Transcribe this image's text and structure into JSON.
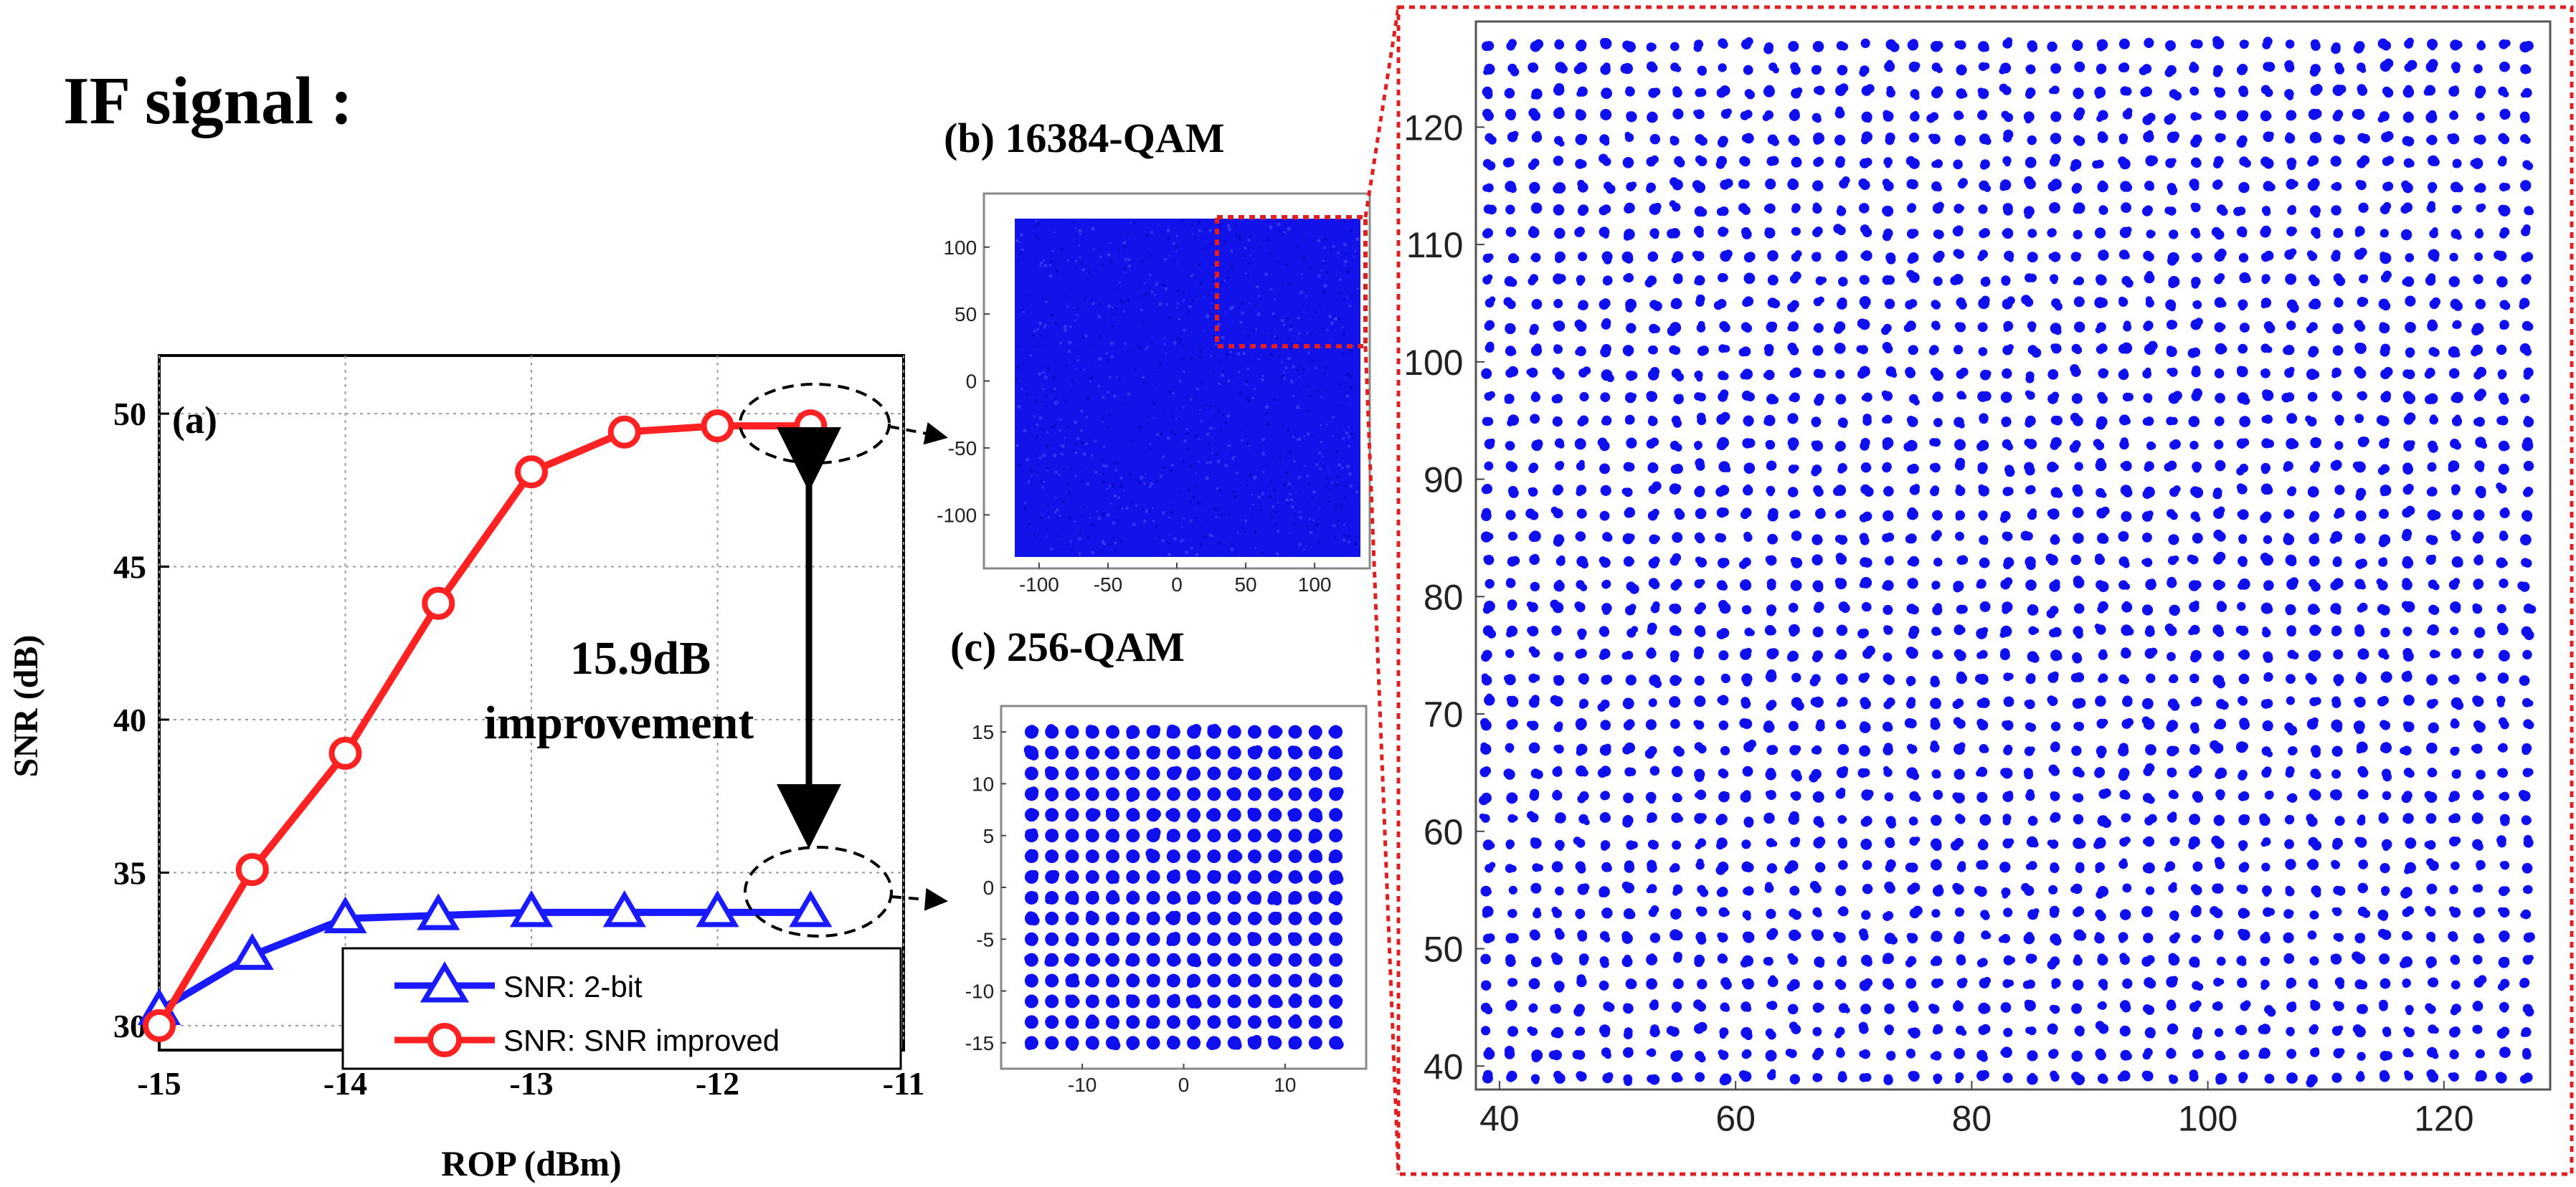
{
  "heading": "IF signal :",
  "colors": {
    "blue_series": "#1a1aff",
    "red_series": "#ff2222",
    "constellation_blue": "#1010ee",
    "zoom_box": "#e02020",
    "grid": "#9a9a9a"
  },
  "chart_data": [
    {
      "id": "a",
      "type": "line",
      "panel_label": "(a)",
      "xlabel": "ROP (dBm)",
      "ylabel": "SNR (dB)",
      "xlim": [
        -15,
        -11
      ],
      "ylim": [
        29.2,
        51.9
      ],
      "xticks": [
        -15,
        -14,
        -13,
        -12,
        -11
      ],
      "yticks": [
        30,
        35,
        40,
        45,
        50
      ],
      "grid": true,
      "legend_position": "bottom-right",
      "series": [
        {
          "name": "SNR: 2-bit",
          "marker": "triangle",
          "color": "#1a1aff",
          "x": [
            -15,
            -14.5,
            -14,
            -13.5,
            -13,
            -12.5,
            -12,
            -11.5
          ],
          "y": [
            30.5,
            32.3,
            33.5,
            33.6,
            33.7,
            33.7,
            33.7,
            33.7
          ]
        },
        {
          "name": "SNR: SNR improved",
          "marker": "circle",
          "color": "#ff2222",
          "x": [
            -15,
            -14.5,
            -14,
            -13.5,
            -13,
            -12.5,
            -12,
            -11.5
          ],
          "y": [
            30.0,
            35.1,
            38.9,
            43.8,
            48.1,
            49.4,
            49.6,
            49.6
          ]
        }
      ],
      "annotations": [
        "15.9dB",
        "improvement"
      ]
    },
    {
      "id": "b",
      "type": "scatter",
      "title": "(b) 16384-QAM",
      "grid_size": 128,
      "xlim": [
        -140,
        140
      ],
      "ylim": [
        -140,
        140
      ],
      "xticks": [
        -100,
        -50,
        0,
        50,
        100
      ],
      "yticks": [
        100,
        50,
        0,
        -50,
        -100
      ],
      "zoom_region": {
        "x": [
          30,
          127
        ],
        "y": [
          30,
          127
        ]
      }
    },
    {
      "id": "c",
      "type": "scatter",
      "title": "(c) 256-QAM",
      "grid_size": 16,
      "xlim": [
        -18,
        18
      ],
      "ylim": [
        -17.5,
        17.5
      ],
      "xticks": [
        -10,
        0,
        10
      ],
      "yticks": [
        15,
        10,
        5,
        0,
        -5,
        -10,
        -15
      ]
    },
    {
      "id": "zoom",
      "type": "scatter",
      "xlim": [
        38,
        129
      ],
      "ylim": [
        38,
        129
      ],
      "xticks": [
        40,
        60,
        80,
        100,
        120
      ],
      "yticks": [
        120,
        110,
        100,
        90,
        80,
        70,
        60,
        50,
        40
      ],
      "point_spacing": 2,
      "first_point": 39
    }
  ]
}
